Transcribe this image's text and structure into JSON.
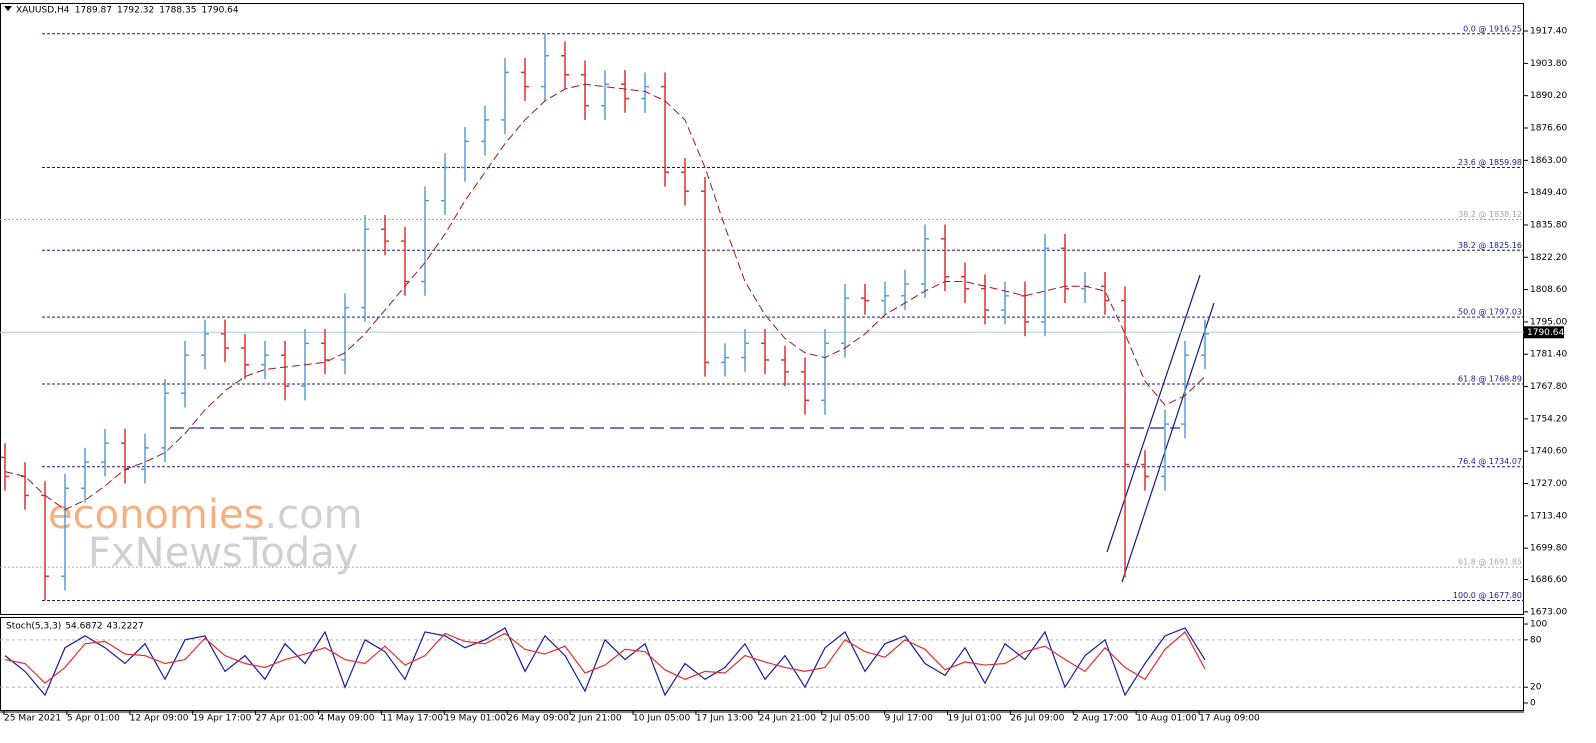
{
  "chart_data": [
    {
      "type": "ohlc",
      "symbol": "XAUUSD,H4",
      "last_bar": {
        "open": 1789.87,
        "high": 1792.32,
        "low": 1788.35,
        "close": 1790.64
      },
      "up_color": "#5b9bd5",
      "down_color": "#e03030",
      "ma_color": "#a01818",
      "open": [
        1738,
        1730,
        1722,
        1688,
        1725,
        1736,
        1744,
        1733,
        1742,
        1765,
        1781,
        1790,
        1784,
        1777,
        1781,
        1768,
        1786,
        1779,
        1801,
        1834,
        1829,
        1812,
        1846,
        1860,
        1871,
        1880,
        1900,
        1894,
        1907,
        1899,
        1886,
        1895,
        1889,
        1894,
        1858,
        1850,
        1778,
        1780,
        1786,
        1779,
        1774,
        1762,
        1786,
        1805,
        1804,
        1806,
        1811,
        1830,
        1814,
        1809,
        1800,
        1806,
        1795,
        1826,
        1809,
        1810,
        1804,
        1735,
        1730,
        1752,
        1781
      ],
      "high": [
        1744,
        1736,
        1728,
        1731,
        1742,
        1750,
        1750,
        1748,
        1771,
        1787,
        1796,
        1796,
        1790,
        1787,
        1787,
        1792,
        1792,
        1807,
        1840,
        1840,
        1835,
        1852,
        1866,
        1877,
        1886,
        1906,
        1906,
        1916.25,
        1913,
        1905,
        1901,
        1901,
        1900,
        1900,
        1864,
        1856,
        1786,
        1792,
        1792,
        1785,
        1780,
        1792,
        1811,
        1811,
        1812,
        1817,
        1836,
        1836,
        1820,
        1815,
        1812,
        1812,
        1832,
        1832,
        1816,
        1816,
        1810,
        1741,
        1758,
        1787,
        1796
      ],
      "low": [
        1724,
        1716,
        1677.8,
        1682,
        1719,
        1730,
        1727,
        1727,
        1736,
        1759,
        1775,
        1778,
        1771,
        1771,
        1762,
        1762,
        1773,
        1773,
        1795,
        1823,
        1806,
        1806,
        1840,
        1854,
        1865,
        1874,
        1888,
        1888,
        1893,
        1880,
        1880,
        1883,
        1883,
        1852,
        1844,
        1772,
        1772,
        1774,
        1773,
        1768,
        1756,
        1756,
        1780,
        1798,
        1798,
        1800,
        1805,
        1808,
        1803,
        1794,
        1794,
        1789,
        1789,
        1803,
        1803,
        1798,
        1687.5,
        1724,
        1724,
        1746,
        1775
      ],
      "close": [
        1730,
        1722,
        1688,
        1725,
        1736,
        1744,
        1733,
        1742,
        1765,
        1781,
        1790,
        1784,
        1777,
        1781,
        1768,
        1786,
        1779,
        1801,
        1834,
        1829,
        1812,
        1846,
        1860,
        1871,
        1880,
        1900,
        1894,
        1907,
        1899,
        1886,
        1895,
        1889,
        1894,
        1858,
        1850,
        1778,
        1780,
        1786,
        1779,
        1774,
        1762,
        1786,
        1805,
        1804,
        1806,
        1811,
        1830,
        1814,
        1809,
        1800,
        1806,
        1795,
        1826,
        1809,
        1810,
        1804,
        1735,
        1730,
        1752,
        1781,
        1790
      ],
      "ma": [
        1732,
        1730,
        1722,
        1716,
        1720,
        1726,
        1733,
        1736,
        1740,
        1748,
        1758,
        1766,
        1772,
        1775,
        1776,
        1777,
        1778,
        1782,
        1790,
        1800,
        1810,
        1820,
        1832,
        1846,
        1858,
        1870,
        1880,
        1888,
        1893,
        1895,
        1894,
        1893,
        1892,
        1888,
        1880,
        1860,
        1835,
        1812,
        1798,
        1788,
        1782,
        1780,
        1784,
        1790,
        1798,
        1803,
        1808,
        1812,
        1812,
        1810,
        1808,
        1806,
        1808,
        1810,
        1810,
        1808,
        1790,
        1770,
        1760,
        1764,
        1772
      ],
      "x_labels": [
        "25 Mar 2021",
        "5 Apr 01:00",
        "12 Apr 09:00",
        "19 Apr 17:00",
        "27 Apr 01:00",
        "4 May 09:00",
        "11 May 17:00",
        "19 May 01:00",
        "26 May 09:00",
        "2 Jun 21:00",
        "10 Jun 05:00",
        "17 Jun 13:00",
        "24 Jun 21:00",
        "2 Jul 05:00",
        "9 Jul 17:00",
        "19 Jul 01:00",
        "26 Jul 09:00",
        "2 Aug 17:00",
        "10 Aug 01:00",
        "17 Aug 09:00"
      ],
      "ylim": [
        1672.1,
        1929.2
      ],
      "yticks": [
        {
          "value": 1917.4,
          "label": "1917.40"
        },
        {
          "value": 1903.8,
          "label": "1903.80"
        },
        {
          "value": 1890.2,
          "label": "1890.20"
        },
        {
          "value": 1876.6,
          "label": "1876.60"
        },
        {
          "value": 1863,
          "label": "1863.00"
        },
        {
          "value": 1849.4,
          "label": "1849.40"
        },
        {
          "value": 1835.8,
          "label": "1835.80"
        },
        {
          "value": 1822.2,
          "label": "1822.20"
        },
        {
          "value": 1808.6,
          "label": "1808.60"
        },
        {
          "value": 1795,
          "label": "1795.00"
        },
        {
          "value": 1781.4,
          "label": "1781.40"
        },
        {
          "value": 1767.8,
          "label": "1767.80"
        },
        {
          "value": 1754.2,
          "label": "1754.20"
        },
        {
          "value": 1740.6,
          "label": "1740.60"
        },
        {
          "value": 1727,
          "label": "1727.00"
        },
        {
          "value": 1713.4,
          "label": "1713.40"
        },
        {
          "value": 1699.8,
          "label": "1699.80"
        },
        {
          "value": 1686.6,
          "label": "1686.60"
        },
        {
          "value": 1673,
          "label": "1673.00"
        }
      ],
      "fib_levels": [
        {
          "value": 1916.25,
          "label": "0.0 @ 1916.25",
          "color": "#1a1a8c"
        },
        {
          "value": 1859.98,
          "label": "23.6 @ 1859.98",
          "color": "#1a1a8c"
        },
        {
          "value": 1838.12,
          "label": "38.2 @ 1838.12",
          "color": "#a8a8a8"
        },
        {
          "value": 1825.16,
          "label": "38.2 @ 1825.16",
          "color": "#1a1a8c"
        },
        {
          "value": 1797.03,
          "label": "50.0 @ 1797.03",
          "color": "#1a1a8c"
        },
        {
          "value": 1768.89,
          "label": "61.8 @ 1768.89",
          "color": "#1a1a8c"
        },
        {
          "value": 1734.07,
          "label": "76.4 @ 1734.07",
          "color": "#1a1a8c"
        },
        {
          "value": 1691.85,
          "label": "61.8 @ 1691.85",
          "color": "#a8a8a8"
        },
        {
          "value": 1677.8,
          "label": "100.0 @ 1677.80",
          "color": "#1a1a8c"
        }
      ],
      "watermark": [
        "economies",
        ".com",
        "FxNewsToday"
      ]
    },
    {
      "type": "stochastic",
      "title": "Stoch(5,3,3)",
      "series": [
        {
          "name": "main",
          "color": "#1a1aa0",
          "values": [
            60,
            40,
            10,
            70,
            85,
            70,
            50,
            75,
            30,
            80,
            85,
            40,
            60,
            30,
            75,
            50,
            90,
            20,
            80,
            65,
            30,
            90,
            85,
            70,
            80,
            95,
            40,
            85,
            60,
            15,
            80,
            55,
            75,
            10,
            50,
            30,
            45,
            75,
            30,
            60,
            20,
            70,
            90,
            40,
            75,
            85,
            50,
            35,
            70,
            25,
            75,
            55,
            90,
            20,
            60,
            80,
            10,
            50,
            85,
            95,
            54.6872
          ]
        },
        {
          "name": "signal",
          "color": "#e03030",
          "values": [
            55,
            50,
            25,
            45,
            75,
            78,
            62,
            60,
            50,
            55,
            82,
            60,
            50,
            45,
            55,
            62,
            70,
            55,
            50,
            72,
            48,
            60,
            88,
            78,
            75,
            88,
            68,
            62,
            72,
            38,
            48,
            68,
            65,
            42,
            30,
            40,
            38,
            60,
            52,
            45,
            40,
            45,
            80,
            65,
            58,
            80,
            68,
            42,
            52,
            48,
            50,
            65,
            72,
            55,
            40,
            70,
            45,
            30,
            68,
            90,
            43.2227
          ]
        }
      ],
      "ylim": [
        -8.9,
        108.9
      ],
      "yticks": [
        100,
        80,
        20,
        0
      ],
      "levels": [
        80,
        20
      ]
    }
  ]
}
